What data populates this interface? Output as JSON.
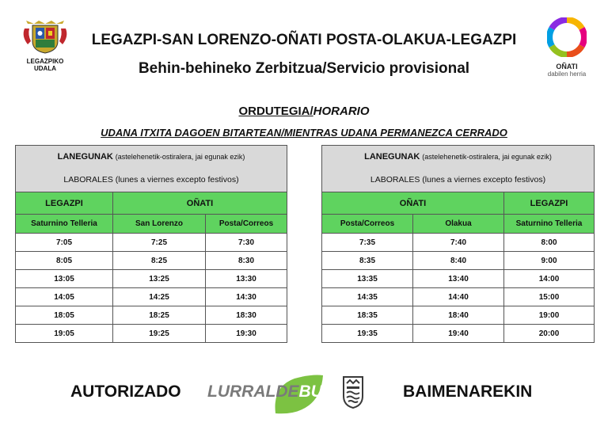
{
  "header": {
    "title": "LEGAZPI-SAN LORENZO-OÑATI POSTA-OLAKUA-LEGAZPI",
    "subtitle": "Behin-behineko Zerbitzua/Servicio provisional",
    "left_logo_line1": "LEGAZPIKO",
    "left_logo_line2": "UDALA",
    "right_logo_line1": "OÑATI",
    "right_logo_line2": "dabilen herria"
  },
  "schedule": {
    "title_eu": "ORDUTEGIA",
    "title_sep": "/",
    "title_es": "HORARIO",
    "condition": "UDANA ITXITA DAGOEN BITARTEAN/MIENTRAS UDANA PERMANEZCA CERRADO"
  },
  "table_left": {
    "days_eu_bold": "LANEGUNAK",
    "days_eu_detail": "(astelehenetik-ostiralera, jai egunak ezik)",
    "days_es": "LABORALES (lunes a viernes excepto festivos)",
    "place1": "LEGAZPI",
    "place2": "OÑATI",
    "stops": [
      "Saturnino Telleria",
      "San Lorenzo",
      "Posta/Correos"
    ],
    "rows": [
      [
        "7:05",
        "7:25",
        "7:30"
      ],
      [
        "8:05",
        "8:25",
        "8:30"
      ],
      [
        "13:05",
        "13:25",
        "13:30"
      ],
      [
        "14:05",
        "14:25",
        "14:30"
      ],
      [
        "18:05",
        "18:25",
        "18:30"
      ],
      [
        "19:05",
        "19:25",
        "19:30"
      ]
    ]
  },
  "table_right": {
    "days_eu_bold": "LANEGUNAK",
    "days_eu_detail": "(astelehenetik-ostiralera, jai egunak ezik)",
    "days_es": "LABORALES (lunes a viernes excepto festivos)",
    "place1": "OÑATI",
    "place2": "LEGAZPI",
    "stops": [
      "Posta/Correos",
      "Olakua",
      "Saturnino Telleria"
    ],
    "rows": [
      [
        "7:35",
        "7:40",
        "8:00"
      ],
      [
        "8:35",
        "8:40",
        "9:00"
      ],
      [
        "13:35",
        "13:40",
        "14:00"
      ],
      [
        "14:35",
        "14:40",
        "15:00"
      ],
      [
        "18:35",
        "18:40",
        "19:00"
      ],
      [
        "19:35",
        "19:40",
        "20:00"
      ]
    ]
  },
  "footer": {
    "authorized_es": "AUTORIZADO",
    "brand_part1": "LURRALDE",
    "brand_part2": "BUS",
    "authorized_eu": "BAIMENAREKIN"
  },
  "colors": {
    "green_header": "#5fd35f",
    "grey_header": "#d9d9d9",
    "brand_green": "#7cc242"
  }
}
